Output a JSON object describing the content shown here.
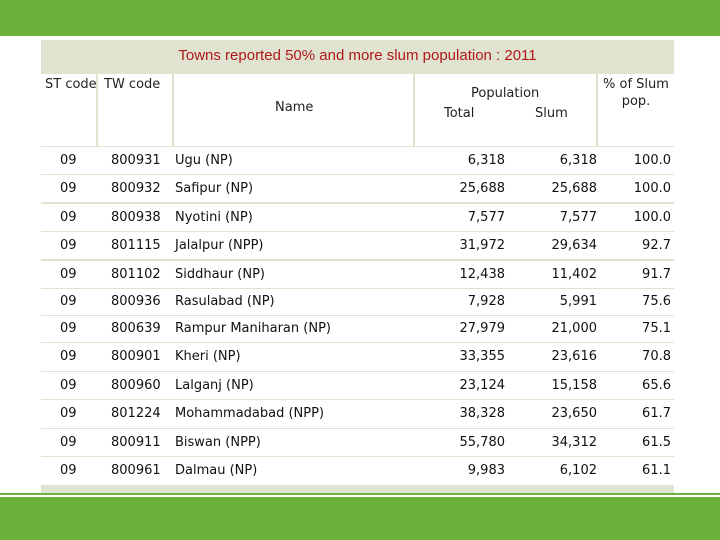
{
  "title": "Towns reported 50% and more slum population : 2011",
  "headers": {
    "st_code": "ST code",
    "tw_code": "TW code",
    "name": "Name",
    "population": "Population",
    "total": "Total",
    "slum": "Slum",
    "pct_line1": "% of Slum",
    "pct_line2": "pop."
  },
  "colors": {
    "accent_green": "#6bb13a",
    "title_red": "#b01818",
    "grid_bg": "#dfe3d0"
  },
  "rows": [
    {
      "st": "09",
      "tw": "800931",
      "name": "Ugu (NP)",
      "total": "6,318",
      "slum": "6,318",
      "pct": "100.0"
    },
    {
      "st": "09",
      "tw": "800932",
      "name": "Safipur (NP)",
      "total": "25,688",
      "slum": "25,688",
      "pct": "100.0"
    },
    {
      "st": "09",
      "tw": "800938",
      "name": "Nyotini (NP)",
      "total": "7,577",
      "slum": "7,577",
      "pct": "100.0"
    },
    {
      "st": "09",
      "tw": "801115",
      "name": "Jalalpur (NPP)",
      "total": "31,972",
      "slum": "29,634",
      "pct": "92.7"
    },
    {
      "st": "09",
      "tw": "801102",
      "name": "Siddhaur (NP)",
      "total": "12,438",
      "slum": "11,402",
      "pct": "91.7"
    },
    {
      "st": "09",
      "tw": "800936",
      "name": "Rasulabad (NP)",
      "total": "7,928",
      "slum": "5,991",
      "pct": "75.6"
    },
    {
      "st": "09",
      "tw": "800639",
      "name": "Rampur Maniharan (NP)",
      "total": "27,979",
      "slum": "21,000",
      "pct": "75.1"
    },
    {
      "st": "09",
      "tw": "800901",
      "name": "Kheri (NP)",
      "total": "33,355",
      "slum": "23,616",
      "pct": "70.8"
    },
    {
      "st": "09",
      "tw": "800960",
      "name": "Lalganj (NP)",
      "total": "23,124",
      "slum": "15,158",
      "pct": "65.6"
    },
    {
      "st": "09",
      "tw": "801224",
      "name": "Mohammadabad (NPP)",
      "total": "38,328",
      "slum": "23,650",
      "pct": "61.7"
    },
    {
      "st": "09",
      "tw": "800911",
      "name": "Biswan (NPP)",
      "total": "55,780",
      "slum": "34,312",
      "pct": "61.5"
    },
    {
      "st": "09",
      "tw": "800961",
      "name": "Dalmau (NP)",
      "total": "9,983",
      "slum": "6,102",
      "pct": "61.1"
    }
  ]
}
